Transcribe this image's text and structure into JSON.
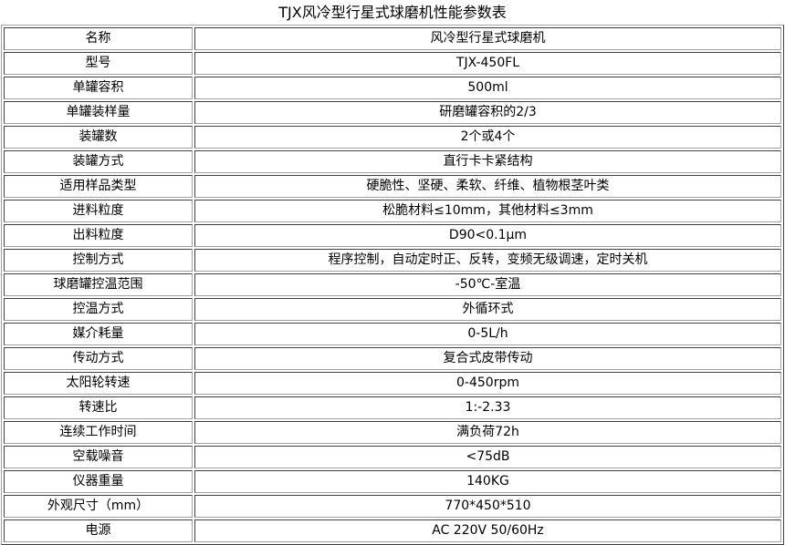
{
  "title": "TJX风冷型行星式球磨机性能参数表",
  "rows": [
    {
      "label": "名称",
      "value": "风冷型行星式球磨机"
    },
    {
      "label": "型号",
      "value": "TJX-450FL"
    },
    {
      "label": "单罐容积",
      "value": "500ml"
    },
    {
      "label": "单罐装样量",
      "value": "研磨罐容积的2/3"
    },
    {
      "label": "装罐数",
      "value": "2个或4个"
    },
    {
      "label": "装罐方式",
      "value": "直行卡卡紧结构"
    },
    {
      "label": "适用样品类型",
      "value": "硬脆性、坚硬、柔软、纤维、植物根茎叶类"
    },
    {
      "label": "进料粒度",
      "value": "松脆材料≤10mm，其他材料≤3mm"
    },
    {
      "label": "出料粒度",
      "value": "D90<0.1μm"
    },
    {
      "label": "控制方式",
      "value": "程序控制，自动定时正、反转，变频无级调速，定时关机"
    },
    {
      "label": "球磨罐控温范围",
      "value": "-50℃-室温"
    },
    {
      "label": "控温方式",
      "value": "外循环式"
    },
    {
      "label": "媒介耗量",
      "value": "0-5L/h"
    },
    {
      "label": "传动方式",
      "value": "复合式皮带传动"
    },
    {
      "label": "太阳轮转速",
      "value": "0-450rpm"
    },
    {
      "label": "转速比",
      "value": "1:-2.33"
    },
    {
      "label": "连续工作时间",
      "value": "满负荷72h"
    },
    {
      "label": "空载噪音",
      "value": "<75dB"
    },
    {
      "label": "仪器重量",
      "value": "140KG"
    },
    {
      "label": "外观尺寸（mm）",
      "value": "770*450*510"
    },
    {
      "label": "电源",
      "value": "AC 220V 50/60Hz"
    }
  ]
}
